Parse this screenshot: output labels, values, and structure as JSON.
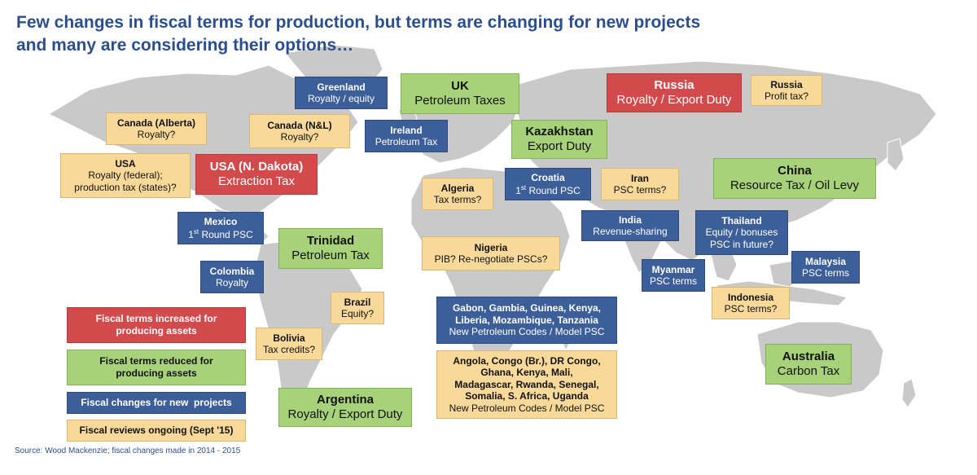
{
  "title": {
    "line1": "Few changes in fiscal terms for production, but terms are changing for new projects",
    "line2": "and many are considering their options…"
  },
  "colors": {
    "increased": "#d24a4b",
    "reduced": "#a8d27a",
    "new_projects": "#3d5f99",
    "reviews": "#f9d99a",
    "land": "#c9c9c9"
  },
  "boxes": {
    "greenland": {
      "country": "Greenland",
      "detail": "Royalty / equity"
    },
    "uk": {
      "country": "UK",
      "detail": "Petroleum Taxes"
    },
    "russia_red": {
      "country": "Russia",
      "detail": "Royalty / Export Duty"
    },
    "russia_tan": {
      "country": "Russia",
      "detail": "Profit tax?"
    },
    "canada_alberta": {
      "country": "Canada (Alberta)",
      "detail": "Royalty?"
    },
    "canada_nl": {
      "country": "Canada (N&L)",
      "detail": "Royalty?"
    },
    "ireland": {
      "country": "Ireland",
      "detail": "Petroleum Tax"
    },
    "kazakhstan": {
      "country": "Kazakhstan",
      "detail": "Export Duty"
    },
    "usa": {
      "country": "USA",
      "detail1": "Royalty (federal);",
      "detail2": "production tax (states)?"
    },
    "usa_nd": {
      "country": "USA (N. Dakota)",
      "detail": "Extraction Tax"
    },
    "algeria": {
      "country": "Algeria",
      "detail": "Tax terms?"
    },
    "croatia": {
      "country": "Croatia",
      "detail_pre": "1",
      "detail_sup": "st",
      "detail_post": " Round PSC"
    },
    "iran": {
      "country": "Iran",
      "detail": "PSC terms?"
    },
    "china": {
      "country": "China",
      "detail": "Resource Tax / Oil Levy"
    },
    "mexico": {
      "country": "Mexico",
      "detail_pre": "1",
      "detail_sup": "st",
      "detail_post": " Round PSC"
    },
    "trinidad": {
      "country": "Trinidad",
      "detail": "Petroleum Tax"
    },
    "india": {
      "country": "India",
      "detail": "Revenue-sharing"
    },
    "thailand": {
      "country": "Thailand",
      "detail1": "Equity / bonuses",
      "detail2": "PSC in future?"
    },
    "nigeria": {
      "country": "Nigeria",
      "detail": "PIB? Re-negotiate PSCs?"
    },
    "colombia": {
      "country": "Colombia",
      "detail": "Royalty"
    },
    "myanmar": {
      "country": "Myanmar",
      "detail": "PSC terms"
    },
    "malaysia": {
      "country": "Malaysia",
      "detail": "PSC terms"
    },
    "brazil": {
      "country": "Brazil",
      "detail": "Equity?"
    },
    "indonesia": {
      "country": "Indonesia",
      "detail": "PSC terms?"
    },
    "gabon_group": {
      "line1": "Gabon, Gambia, Guinea, Kenya,",
      "line2": "Liberia, Mozambique, Tanzania",
      "line3": "New Petroleum Codes / Model PSC"
    },
    "bolivia": {
      "country": "Bolivia",
      "detail": "Tax credits?"
    },
    "angola_group": {
      "line1": "Angola, Congo (Br.), DR Congo,",
      "line2": "Ghana, Kenya, Mali,",
      "line3": "Madagascar, Rwanda, Senegal,",
      "line4": "Somalia, S. Africa, Uganda",
      "line5": "New Petroleum Codes / Model PSC"
    },
    "australia": {
      "country": "Australia",
      "detail": "Carbon Tax"
    },
    "argentina": {
      "country": "Argentina",
      "detail": "Royalty / Export Duty"
    }
  },
  "legend": {
    "increased": {
      "line1": "Fiscal terms increased for",
      "line2": "producing assets"
    },
    "reduced": {
      "line1": "Fiscal terms reduced for",
      "line2": "producing assets"
    },
    "new_projects": "Fiscal changes for new  projects",
    "reviews": "Fiscal reviews ongoing (Sept '15)"
  },
  "source": "Source: Wood Mackenzie; fiscal changes made in 2014 - 2015"
}
